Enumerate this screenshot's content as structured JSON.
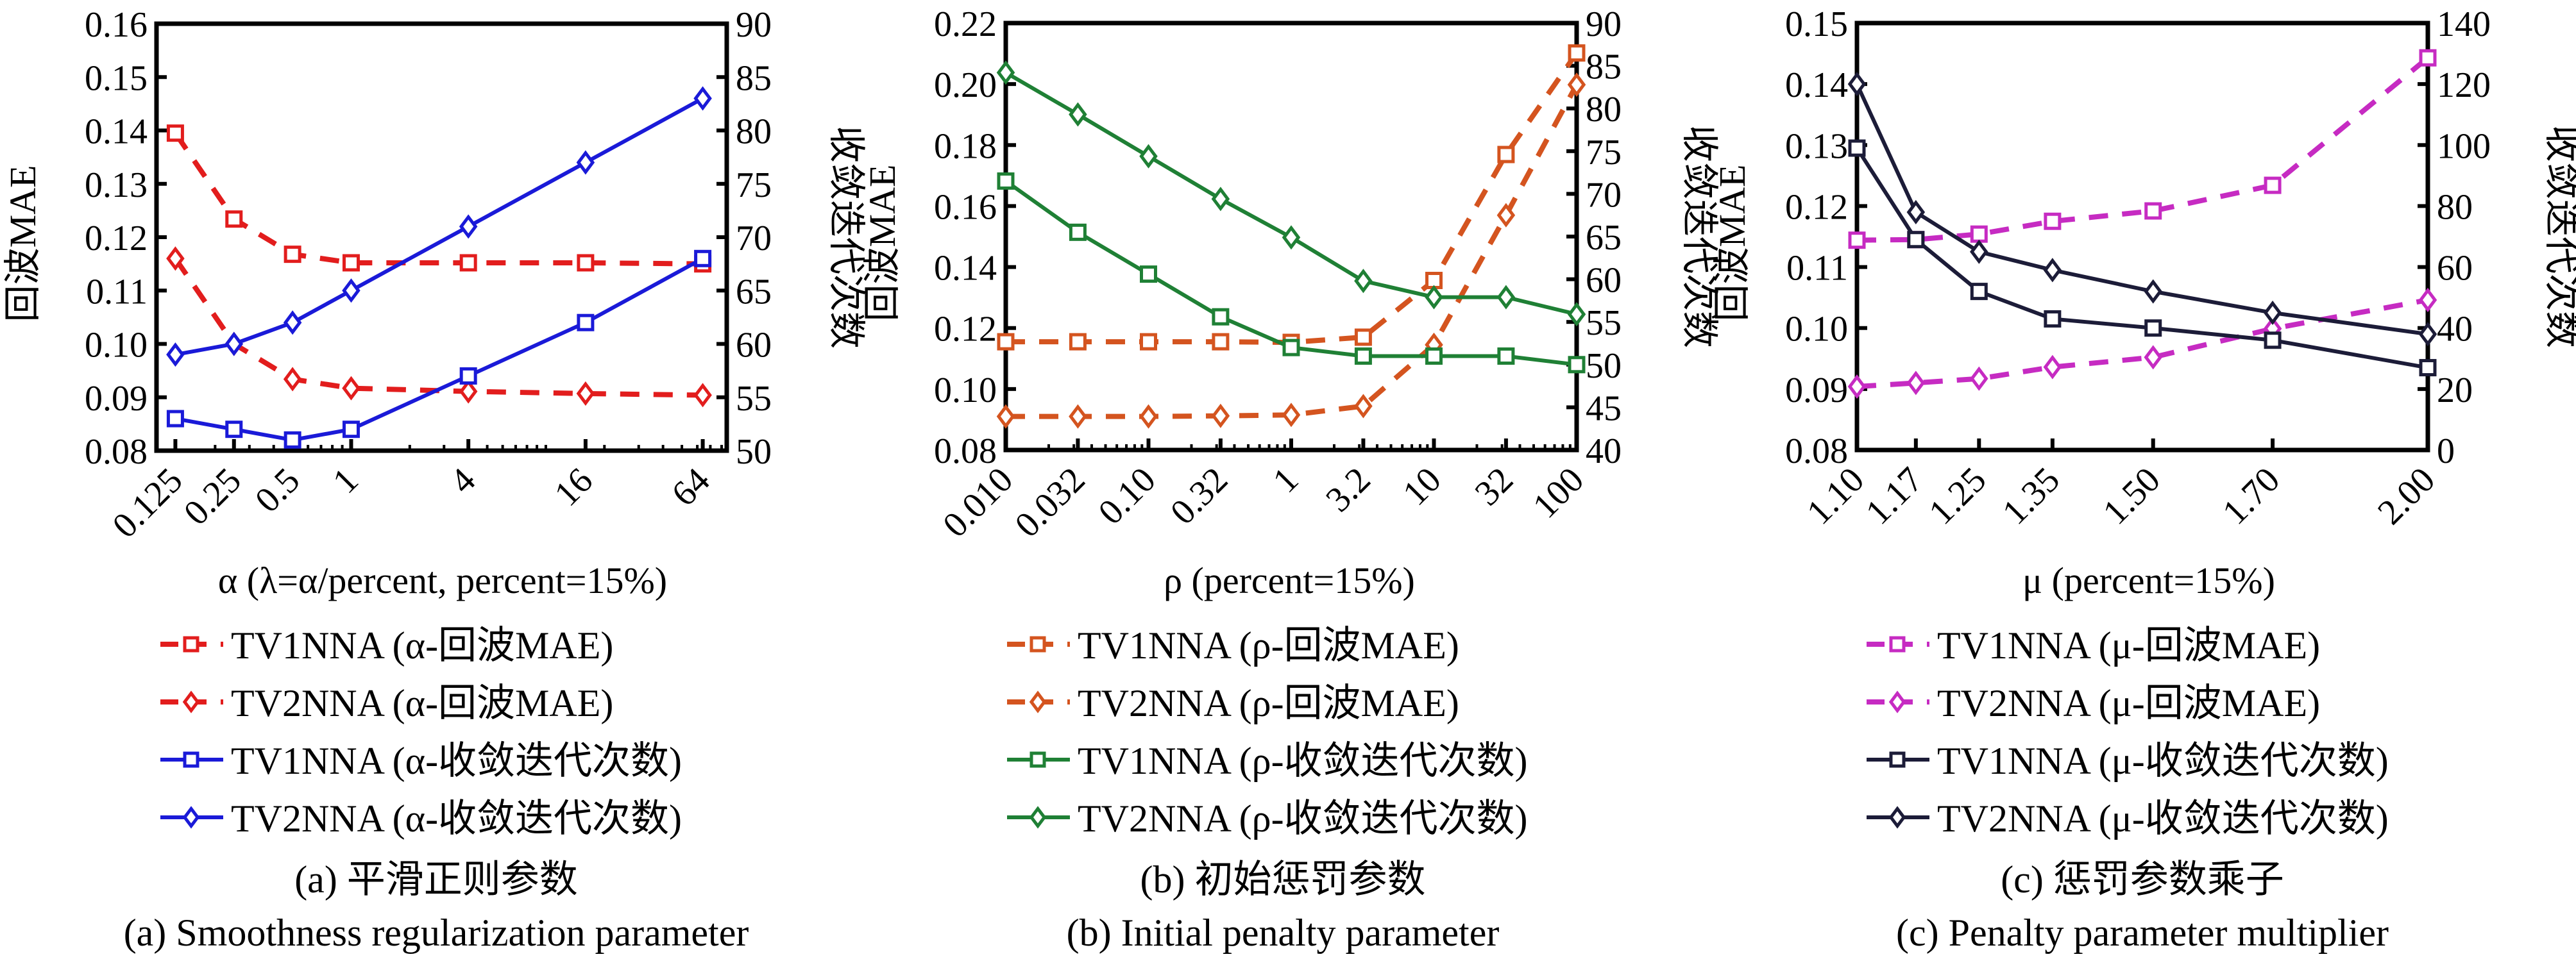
{
  "figure": {
    "panels": [
      {
        "id": "a",
        "caption_cn": "(a) 平滑正则参数",
        "caption_en": "(a) Smoothness regularization parameter"
      },
      {
        "id": "b",
        "caption_cn": "(b) 初始惩罚参数",
        "caption_en": "(b) Initial penalty parameter"
      },
      {
        "id": "c",
        "caption_cn": "(c) 惩罚参数乘子",
        "caption_en": "(c) Penalty parameter multiplier"
      }
    ]
  },
  "chart_data": [
    {
      "type": "line",
      "panel": "a",
      "title": "(a) 平滑正则参数 / (a) Smoothness regularization parameter",
      "xlabel": "α (λ=α/percent, percent=15%)",
      "ylabel": "回波MAE",
      "ylabel_right": "收敛迭代次数",
      "xscale": "log",
      "x": [
        0.125,
        0.25,
        0.5,
        1,
        4,
        16,
        64
      ],
      "x_tick_labels": [
        "0.125",
        "0.25",
        "0.5",
        "1",
        "4",
        "16",
        "64"
      ],
      "xlim": [
        0.1,
        85
      ],
      "ylim": [
        0.08,
        0.16
      ],
      "y_ticks": [
        "0.08",
        "0.09",
        "0.10",
        "0.11",
        "0.12",
        "0.13",
        "0.14",
        "0.15",
        "0.16"
      ],
      "ylim_right": [
        50,
        90
      ],
      "y_ticks_right": [
        "50",
        "55",
        "60",
        "65",
        "70",
        "75",
        "80",
        "85",
        "90"
      ],
      "grid": false,
      "legend_position": "bottom",
      "series": [
        {
          "name": "TV1NNA (α-回波MAE)",
          "axis": "left",
          "color": "#e21d1d",
          "dash": true,
          "marker": "square",
          "values": [
            0.1395,
            0.1234,
            0.1168,
            0.1152,
            0.1152,
            0.1152,
            0.115
          ]
        },
        {
          "name": "TV2NNA (α-回波MAE)",
          "axis": "left",
          "color": "#e21d1d",
          "dash": true,
          "marker": "diamond",
          "values": [
            0.116,
            0.1,
            0.0934,
            0.0917,
            0.0911,
            0.0907,
            0.0904
          ]
        },
        {
          "name": "TV1NNA (α-收敛迭代次数)",
          "axis": "right",
          "color": "#1a1ad8",
          "dash": false,
          "marker": "square",
          "values": [
            53,
            52,
            51,
            52,
            57,
            62,
            68
          ]
        },
        {
          "name": "TV2NNA (α-收敛迭代次数)",
          "axis": "right",
          "color": "#1a1ad8",
          "dash": false,
          "marker": "diamond",
          "values": [
            59,
            60,
            62,
            65,
            71,
            77,
            83
          ]
        }
      ]
    },
    {
      "type": "line",
      "panel": "b",
      "title": "(b) 初始惩罚参数 / (b) Initial penalty parameter",
      "xlabel": "ρ (percent=15%)",
      "ylabel": "回波MAE",
      "ylabel_right": "收敛迭代次数",
      "xscale": "log",
      "x": [
        0.01,
        0.032,
        0.1,
        0.32,
        1,
        3.2,
        10,
        32,
        100
      ],
      "x_tick_labels": [
        "0.010",
        "0.032",
        "0.10",
        "0.32",
        "1",
        "3.2",
        "10",
        "32",
        "100"
      ],
      "xlim": [
        0.01,
        100
      ],
      "ylim": [
        0.08,
        0.22
      ],
      "y_ticks": [
        "0.08",
        "0.10",
        "0.12",
        "0.14",
        "0.16",
        "0.18",
        "0.20",
        "0.22"
      ],
      "ylim_right": [
        40,
        90
      ],
      "y_ticks_right": [
        "40",
        "45",
        "50",
        "55",
        "60",
        "65",
        "70",
        "75",
        "80",
        "85",
        "90"
      ],
      "grid": false,
      "legend_position": "bottom",
      "series": [
        {
          "name": "TV1NNA (ρ-回波MAE)",
          "axis": "left",
          "color": "#d4541f",
          "dash": true,
          "marker": "square",
          "values": [
            0.1155,
            0.1155,
            0.1155,
            0.1155,
            0.1153,
            0.117,
            0.1356,
            0.1769,
            0.2102
          ]
        },
        {
          "name": "TV2NNA (ρ-回波MAE)",
          "axis": "left",
          "color": "#d4541f",
          "dash": true,
          "marker": "diamond",
          "values": [
            0.091,
            0.091,
            0.091,
            0.0912,
            0.0915,
            0.0944,
            0.1145,
            0.157,
            0.1998
          ]
        },
        {
          "name": "TV1NNA (ρ-收敛迭代次数)",
          "axis": "right",
          "color": "#1f8035",
          "dash": false,
          "marker": "square",
          "values": [
            71.5,
            65.5,
            60.6,
            55.6,
            52,
            51,
            51,
            51,
            50
          ]
        },
        {
          "name": "TV2NNA (ρ-收敛迭代次数)",
          "axis": "right",
          "color": "#1f8035",
          "dash": false,
          "marker": "diamond",
          "values": [
            84.2,
            79.3,
            74.4,
            69.4,
            64.9,
            59.8,
            57.9,
            57.9,
            55.9
          ]
        }
      ]
    },
    {
      "type": "line",
      "panel": "c",
      "title": "(c) 惩罚参数乘子 / (c) Penalty parameter multiplier",
      "xlabel": "μ (percent=15%)",
      "ylabel": "回波MAE",
      "ylabel_right": "收敛迭代次数",
      "xscale": "log",
      "x": [
        1.1,
        1.17,
        1.25,
        1.35,
        1.5,
        1.7,
        2.0
      ],
      "x_tick_labels": [
        "1.10",
        "1.17",
        "1.25",
        "1.35",
        "1.50",
        "1.70",
        "2.00"
      ],
      "xlim": [
        1.1,
        2.0
      ],
      "ylim": [
        0.08,
        0.15
      ],
      "y_ticks": [
        "0.08",
        "0.09",
        "0.10",
        "0.11",
        "0.12",
        "0.13",
        "0.14",
        "0.15"
      ],
      "ylim_right": [
        0,
        140
      ],
      "y_ticks_right": [
        "0",
        "20",
        "40",
        "60",
        "80",
        "100",
        "120",
        "140"
      ],
      "grid": false,
      "legend_position": "bottom",
      "series": [
        {
          "name": "TV1NNA (μ-回波MAE)",
          "axis": "left",
          "color": "#c62bc2",
          "dash": true,
          "marker": "square",
          "values": [
            0.1144,
            0.1145,
            0.1154,
            0.1175,
            0.1192,
            0.1234,
            0.1443
          ]
        },
        {
          "name": "TV2NNA (μ-回波MAE)",
          "axis": "left",
          "color": "#c62bc2",
          "dash": true,
          "marker": "diamond",
          "values": [
            0.0904,
            0.091,
            0.0917,
            0.0936,
            0.0952,
            0.0999,
            0.1046
          ]
        },
        {
          "name": "TV1NNA (μ-收敛迭代次数)",
          "axis": "right",
          "color": "#1c1c38",
          "dash": false,
          "marker": "square",
          "values": [
            99,
            69,
            52,
            43,
            40,
            36,
            27
          ]
        },
        {
          "name": "TV2NNA (μ-收敛迭代次数)",
          "axis": "right",
          "color": "#1c1c38",
          "dash": false,
          "marker": "diamond",
          "values": [
            120,
            78,
            65,
            59,
            52,
            45,
            38
          ]
        }
      ]
    }
  ]
}
